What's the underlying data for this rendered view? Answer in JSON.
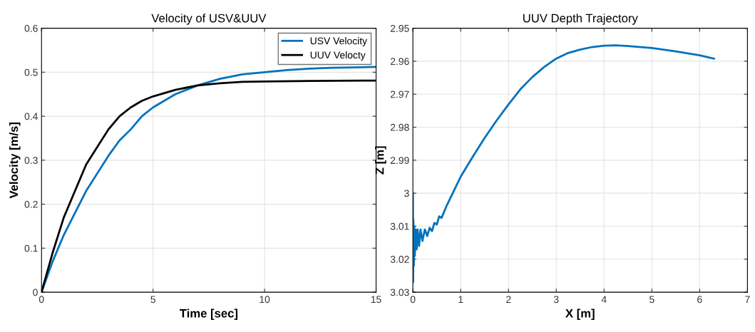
{
  "chart_data": [
    {
      "type": "line",
      "title": "Velocity of USV&UUV",
      "xlabel": "Time [sec]",
      "ylabel": "Velocity [m/s]",
      "xlim": [
        0,
        15
      ],
      "ylim": [
        0,
        0.6
      ],
      "xticks": [
        0,
        5,
        10,
        15
      ],
      "yticks": [
        0,
        0.1,
        0.2,
        0.3,
        0.4,
        0.5,
        0.6
      ],
      "grid": true,
      "legend": "top right",
      "series": [
        {
          "name": "USV Velocity",
          "color": "#0072bd",
          "x": [
            0,
            0.5,
            1,
            1.5,
            2,
            2.5,
            3,
            3.5,
            4,
            4.5,
            5,
            6,
            7,
            8,
            9,
            10,
            11,
            12,
            13,
            14,
            15
          ],
          "values": [
            0,
            0.07,
            0.13,
            0.18,
            0.23,
            0.27,
            0.31,
            0.345,
            0.37,
            0.4,
            0.42,
            0.45,
            0.47,
            0.485,
            0.495,
            0.5,
            0.505,
            0.508,
            0.51,
            0.511,
            0.512
          ]
        },
        {
          "name": "UUV Velocty",
          "color": "#000000",
          "x": [
            0,
            0.5,
            1,
            1.5,
            2,
            2.5,
            3,
            3.5,
            4,
            4.5,
            5,
            6,
            7,
            8,
            9,
            10,
            12,
            15
          ],
          "values": [
            0,
            0.09,
            0.17,
            0.23,
            0.29,
            0.33,
            0.37,
            0.4,
            0.42,
            0.435,
            0.445,
            0.46,
            0.47,
            0.475,
            0.478,
            0.479,
            0.48,
            0.481
          ]
        }
      ]
    },
    {
      "type": "line",
      "title": "UUV Depth Trajectory",
      "xlabel": "X [m]",
      "ylabel": "Z [m]",
      "xlim": [
        0,
        7
      ],
      "ylim": [
        3.03,
        2.95
      ],
      "xticks": [
        0,
        1,
        2,
        3,
        4,
        5,
        6,
        7
      ],
      "yticks": [
        2.95,
        2.96,
        2.97,
        2.98,
        2.99,
        3,
        3.01,
        3.02,
        3.03
      ],
      "grid": true,
      "series": [
        {
          "color": "#0072bd",
          "x": [
            0,
            0.005,
            0.01,
            0.02,
            0.03,
            0.04,
            0.06,
            0.08,
            0.1,
            0.13,
            0.16,
            0.2,
            0.25,
            0.3,
            0.35,
            0.4,
            0.45,
            0.5,
            0.55,
            0.6,
            0.7,
            0.8,
            0.9,
            1.0,
            1.25,
            1.5,
            1.75,
            2.0,
            2.25,
            2.5,
            2.75,
            3.0,
            3.25,
            3.5,
            3.75,
            4.0,
            4.25,
            4.5,
            5.0,
            5.5,
            6.0,
            6.3
          ],
          "values": [
            3.0,
            3.027,
            3.008,
            3.022,
            3.01,
            3.019,
            3.011,
            3.017,
            3.011,
            3.016,
            3.011,
            3.0145,
            3.011,
            3.013,
            3.0105,
            3.0115,
            3.009,
            3.0095,
            3.007,
            3.0075,
            3.004,
            3.001,
            2.998,
            2.995,
            2.989,
            2.9833,
            2.978,
            2.9731,
            2.9685,
            2.9648,
            2.9617,
            2.9592,
            2.9575,
            2.9565,
            2.9557,
            2.9553,
            2.9552,
            2.9554,
            2.956,
            2.957,
            2.9582,
            2.9592
          ]
        }
      ]
    }
  ]
}
